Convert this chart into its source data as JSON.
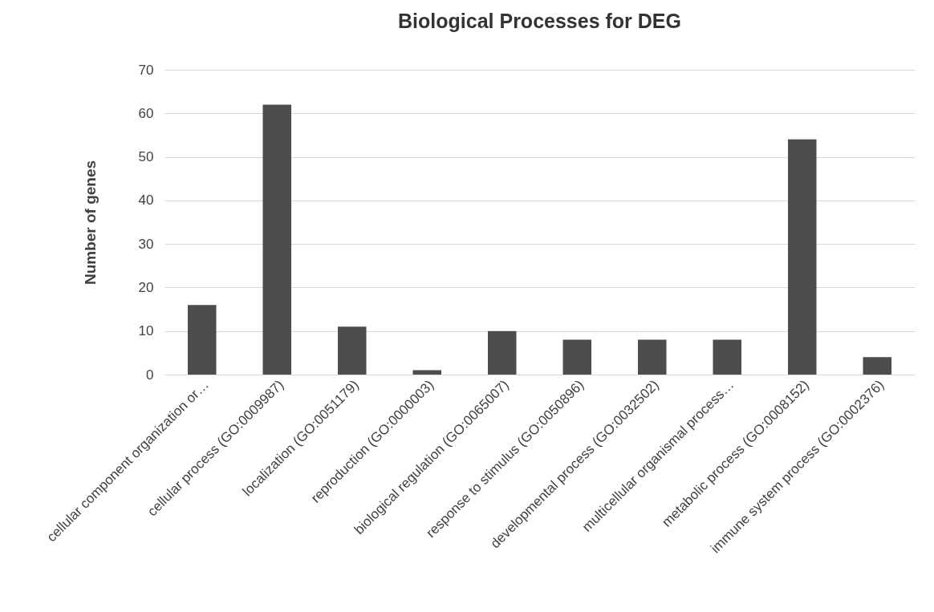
{
  "chart_data": {
    "type": "bar",
    "title": "Biological Processes for DEG",
    "ylabel": "Number of genes",
    "categories": [
      "cellular component organization or…",
      "cellular process (GO:0009987)",
      "localization (GO:0051179)",
      "reproduction (GO:0000003)",
      "biological regulation (GO:0065007)",
      "response to stimulus (GO:0050896)",
      "developmental process (GO:0032502)",
      "multicellular organismal process…",
      "metabolic process (GO:0008152)",
      "immune system process (GO:0002376)"
    ],
    "values": [
      16,
      62,
      11,
      1,
      10,
      8,
      8,
      8,
      54,
      4
    ],
    "color": "#4d4d4d",
    "ylim": [
      0,
      70
    ],
    "yticks": [
      0,
      10,
      20,
      30,
      40,
      50,
      60,
      70
    ],
    "grid": "y"
  }
}
